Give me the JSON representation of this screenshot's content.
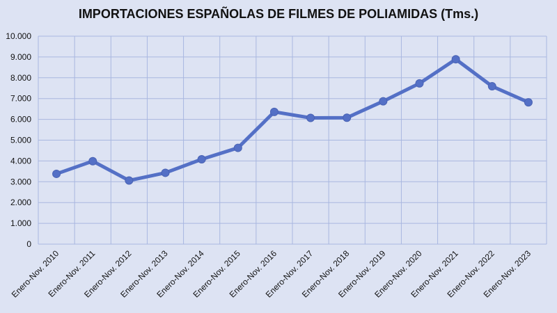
{
  "chart_data": {
    "type": "line",
    "title": "IMPORTACIONES ESPAÑOLAS DE FILMES DE POLIAMIDAS (Tms.)",
    "xlabel": "",
    "ylabel": "",
    "categories": [
      "Enero-Nov. 2010",
      "Enero-Nov. 2011",
      "Enero-Nov. 2012",
      "Enero-Nov. 2013",
      "Enero-Nov. 2014",
      "Enero-Nov. 2015",
      "Enero-Nov. 2016",
      "Enero-Nov. 2017",
      "Enero-Nov. 2018",
      "Enero-Nov. 2019",
      "Enero-Nov. 2020",
      "Enero-Nov. 2021",
      "Enero-Nov. 2022",
      "Enero-Nov. 2023"
    ],
    "series": [
      {
        "values": [
          3380,
          3990,
          3060,
          3430,
          4080,
          4630,
          6360,
          6070,
          6080,
          6870,
          7730,
          8890,
          7590,
          6820
        ]
      }
    ],
    "ylim": [
      0,
      10000
    ],
    "yticks": [
      0,
      1000,
      2000,
      3000,
      4000,
      5000,
      6000,
      7000,
      8000,
      9000,
      10000
    ],
    "ytick_labels": [
      "0",
      "1.000",
      "2.000",
      "3.000",
      "4.000",
      "5.000",
      "6.000",
      "7.000",
      "8.000",
      "9.000",
      "10.000"
    ],
    "grid": true,
    "legend": "none",
    "colors": {
      "line": "#5470c6",
      "grid": "#a9b7e0",
      "background": "#dde3f3"
    }
  }
}
